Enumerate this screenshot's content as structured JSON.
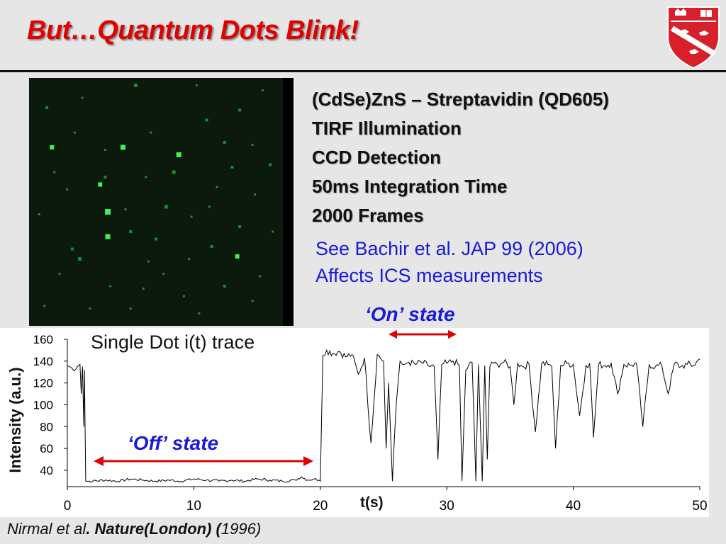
{
  "title": "But…Quantum Dots Blink!",
  "details": [
    "(CdSe)ZnS – Streptavidin (QD605)",
    "TIRF Illumination",
    "CCD Detection",
    "50ms Integration Time",
    "2000 Frames"
  ],
  "references": [
    "See Bachir et al. JAP 99 (2006)",
    "Affects ICS measurements"
  ],
  "annotations": {
    "on_state": "‘On’ state",
    "off_state": "‘Off’ state"
  },
  "citation": {
    "authors": "Nirmal et al",
    "journal": ". Nature(London) (",
    "year": "1996)"
  },
  "colors": {
    "title": "#e00000",
    "annotation_text": "#1a1ad6",
    "arrow": "#e00000",
    "crest": "#d8202a"
  },
  "chart_data": {
    "type": "line",
    "title": "Single Dot i(t) trace",
    "xlabel": "t(s)",
    "ylabel": "Intensity (a.u.)",
    "xlim": [
      0,
      50
    ],
    "ylim": [
      25,
      160
    ],
    "xticks": [
      0,
      10,
      20,
      30,
      40,
      50
    ],
    "yticks": [
      40,
      60,
      80,
      100,
      120,
      140,
      160
    ],
    "grid": false,
    "series": [
      {
        "x": [
          0,
          0.4,
          0.8,
          1.0,
          1.1,
          1.2,
          1.3,
          1.35,
          1.45,
          2,
          3,
          4,
          5,
          6,
          7,
          8,
          9,
          10,
          11,
          12,
          13,
          14,
          15,
          16,
          17,
          18,
          18.5,
          19,
          19.5,
          19.9,
          20.0,
          20.2,
          20.5,
          21,
          21.5,
          22,
          22.5,
          23,
          23.5,
          24,
          24.5,
          25.0,
          25.2,
          25.4,
          25.7,
          26,
          26.3,
          26.5,
          26.8,
          27,
          27.5,
          28,
          28.5,
          29,
          29.3,
          29.6,
          30,
          30.5,
          31,
          31.2,
          31.5,
          32,
          32.3,
          32.5,
          32.8,
          33.0,
          33.2,
          33.4,
          33.7,
          34,
          34.5,
          35,
          35.3,
          35.6,
          36,
          36.5,
          37,
          37.5,
          38,
          38.3,
          38.6,
          39,
          39.5,
          40,
          40.5,
          41,
          41.3,
          41.6,
          42,
          42.5,
          43,
          43.5,
          44,
          44.5,
          45,
          45.5,
          46,
          46.5,
          47,
          47.5,
          48,
          48.5,
          49,
          49.5,
          50
        ],
        "values": [
          136,
          133,
          135,
          137,
          110,
          135,
          80,
          132,
          30,
          30,
          31,
          30,
          32,
          31,
          30,
          31,
          30,
          32,
          31,
          30,
          31,
          30,
          32,
          31,
          30,
          31,
          34,
          31,
          32,
          31,
          30,
          145,
          150,
          147,
          149,
          144,
          146,
          128,
          143,
          65,
          146,
          140,
          60,
          120,
          30,
          100,
          140,
          137,
          138,
          139,
          137,
          139,
          136,
          135,
          50,
          137,
          138,
          140,
          136,
          30,
          132,
          139,
          30,
          137,
          30,
          136,
          50,
          135,
          138,
          137,
          139,
          135,
          100,
          138,
          135,
          137,
          75,
          138,
          137,
          135,
          60,
          136,
          138,
          137,
          90,
          136,
          138,
          70,
          137,
          136,
          138,
          110,
          137,
          136,
          138,
          80,
          137,
          135,
          136,
          110,
          138,
          135,
          137,
          136,
          142
        ]
      }
    ]
  },
  "spots": [
    [
      0.07,
      0.12,
      4
    ],
    [
      0.42,
      0.03,
      5
    ],
    [
      0.09,
      0.28,
      6
    ],
    [
      0.18,
      0.22,
      3
    ],
    [
      0.3,
      0.29,
      3
    ],
    [
      0.37,
      0.28,
      7
    ],
    [
      0.48,
      0.22,
      3
    ],
    [
      0.59,
      0.31,
      7
    ],
    [
      0.77,
      0.26,
      4
    ],
    [
      0.88,
      0.27,
      3
    ],
    [
      0.95,
      0.35,
      4
    ],
    [
      0.66,
      0.03,
      3
    ],
    [
      0.7,
      0.17,
      4
    ],
    [
      0.83,
      0.13,
      4
    ],
    [
      0.92,
      0.05,
      3
    ],
    [
      0.3,
      0.4,
      4
    ],
    [
      0.46,
      0.4,
      3
    ],
    [
      0.57,
      0.38,
      5
    ],
    [
      0.8,
      0.36,
      4
    ],
    [
      0.28,
      0.43,
      6
    ],
    [
      0.38,
      0.53,
      3
    ],
    [
      0.54,
      0.52,
      4
    ],
    [
      0.64,
      0.56,
      3
    ],
    [
      0.71,
      0.52,
      3
    ],
    [
      0.31,
      0.54,
      8
    ],
    [
      0.54,
      0.52,
      5
    ],
    [
      0.83,
      0.6,
      4
    ],
    [
      0.31,
      0.64,
      7
    ],
    [
      0.4,
      0.62,
      4
    ],
    [
      0.17,
      0.69,
      4
    ],
    [
      0.72,
      0.68,
      4
    ],
    [
      0.2,
      0.73,
      5
    ],
    [
      0.47,
      0.74,
      3
    ],
    [
      0.63,
      0.73,
      3
    ],
    [
      0.82,
      0.72,
      6
    ],
    [
      0.12,
      0.79,
      3
    ],
    [
      0.53,
      0.79,
      3
    ],
    [
      0.91,
      0.8,
      3
    ],
    [
      0.32,
      0.84,
      3
    ],
    [
      0.77,
      0.84,
      4
    ],
    [
      0.61,
      0.88,
      3
    ],
    [
      0.88,
      0.9,
      3
    ],
    [
      0.24,
      0.93,
      3
    ],
    [
      0.67,
      0.95,
      3
    ],
    [
      0.4,
      0.93,
      3
    ],
    [
      0.04,
      0.55,
      3
    ],
    [
      0.15,
      0.45,
      3
    ],
    [
      0.96,
      0.62,
      3
    ],
    [
      0.5,
      0.65,
      4
    ],
    [
      0.06,
      0.92,
      3
    ],
    [
      0.21,
      0.08,
      3
    ],
    [
      0.1,
      0.38,
      3
    ],
    [
      0.45,
      0.85,
      3
    ],
    [
      0.74,
      0.44,
      3
    ],
    [
      0.89,
      0.47,
      3
    ]
  ]
}
